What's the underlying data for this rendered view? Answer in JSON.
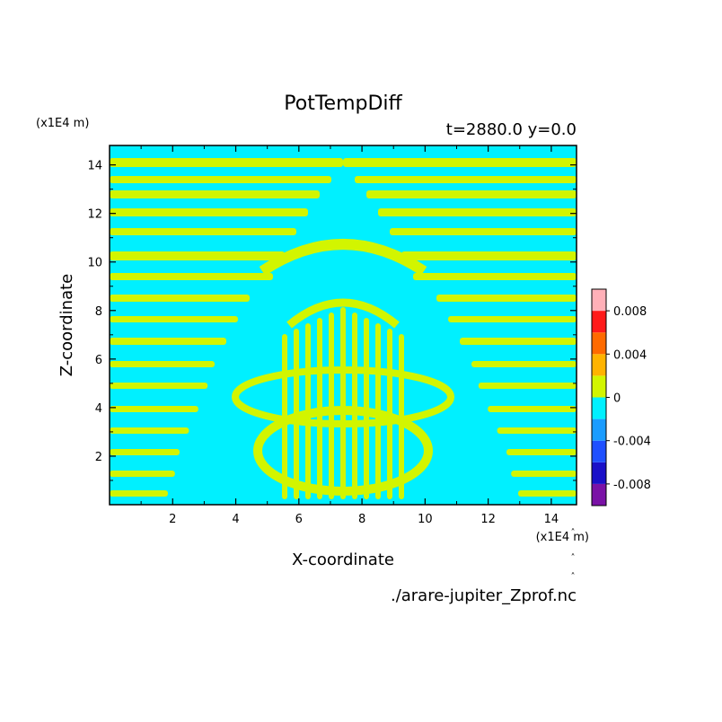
{
  "chart_data": {
    "type": "heatmap",
    "title": "PotTempDiff",
    "subtitle": "t=2880.0 y=0.0",
    "xlabel": "X-coordinate",
    "ylabel": "Z-coordinate",
    "x_unit": "(x1E4 m)",
    "y_unit": "(x1E4 m)",
    "xlim": [
      0,
      14.8
    ],
    "ylim": [
      0,
      14.8
    ],
    "x_ticks": [
      "2",
      "4",
      "6",
      "8",
      "10",
      "12",
      "14"
    ],
    "y_ticks": [
      "2",
      "4",
      "6",
      "8",
      "10",
      "12",
      "14"
    ],
    "colorbar": {
      "levels": [
        {
          "lo": -0.01,
          "hi": -0.008,
          "color": "#7a12a6"
        },
        {
          "lo": -0.008,
          "hi": -0.006,
          "color": "#1a10c8"
        },
        {
          "lo": -0.006,
          "hi": -0.004,
          "color": "#1f50ff"
        },
        {
          "lo": -0.004,
          "hi": -0.002,
          "color": "#1a9cff"
        },
        {
          "lo": -0.002,
          "hi": 0.0,
          "color": "#00f0ff"
        },
        {
          "lo": 0.0,
          "hi": 0.002,
          "color": "#d2f500"
        },
        {
          "lo": 0.002,
          "hi": 0.004,
          "color": "#ffb300"
        },
        {
          "lo": 0.004,
          "hi": 0.006,
          "color": "#ff6a00"
        },
        {
          "lo": 0.006,
          "hi": 0.008,
          "color": "#ff1a1a"
        },
        {
          "lo": 0.008,
          "hi": 0.01,
          "color": "#ffb0b8"
        }
      ],
      "tick_labels": [
        {
          "value": 0.008,
          "label": "0.008"
        },
        {
          "value": 0.004,
          "label": "0.004"
        },
        {
          "value": 0,
          "label": "0"
        },
        {
          "value": -0.004,
          "label": "-0.004"
        },
        {
          "value": -0.008,
          "label": "-0.008"
        }
      ]
    },
    "field_colors": {
      "negative": "#00f0ff",
      "positive": "#d2f500"
    }
  },
  "footer": {
    "source_file": "./arare-jupiter_Zprof.nc"
  }
}
